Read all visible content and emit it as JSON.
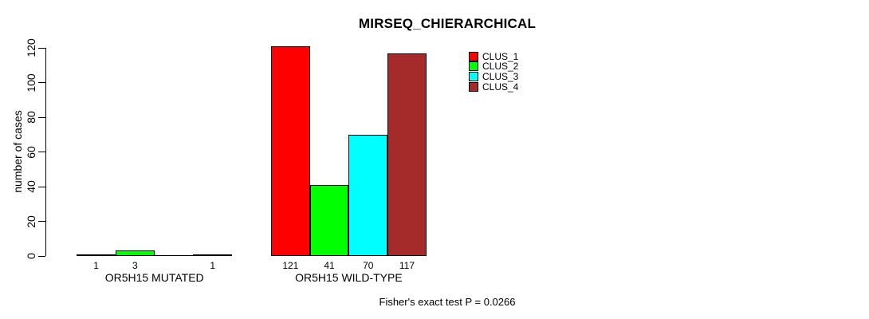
{
  "page": {
    "background_color": "#ffffff",
    "text_color": "#000000"
  },
  "chart_data": {
    "type": "bar",
    "title": "MIRSEQ_CHIERARCHICAL",
    "xlabel": "",
    "ylabel": "number of cases",
    "ylim": [
      0,
      120
    ],
    "yticks": [
      0,
      20,
      40,
      60,
      80,
      100,
      120
    ],
    "grid": false,
    "legend_position": "top-right-inside",
    "categories": [
      "OR5H15 MUTATED",
      "OR5H15 WILD-TYPE"
    ],
    "series": [
      {
        "name": "CLUS_1",
        "color": "#FF0000",
        "values": [
          1,
          121
        ]
      },
      {
        "name": "CLUS_2",
        "color": "#00FF00",
        "values": [
          3,
          41
        ]
      },
      {
        "name": "CLUS_3",
        "color": "#00FFFF",
        "values": [
          0,
          70
        ]
      },
      {
        "name": "CLUS_4",
        "color": "#A52A2A",
        "values": [
          1,
          117
        ]
      }
    ],
    "bar_value_labels": {
      "show": true,
      "hide_zero": true
    },
    "annotation": "Fisher's exact test P = 0.0266"
  }
}
